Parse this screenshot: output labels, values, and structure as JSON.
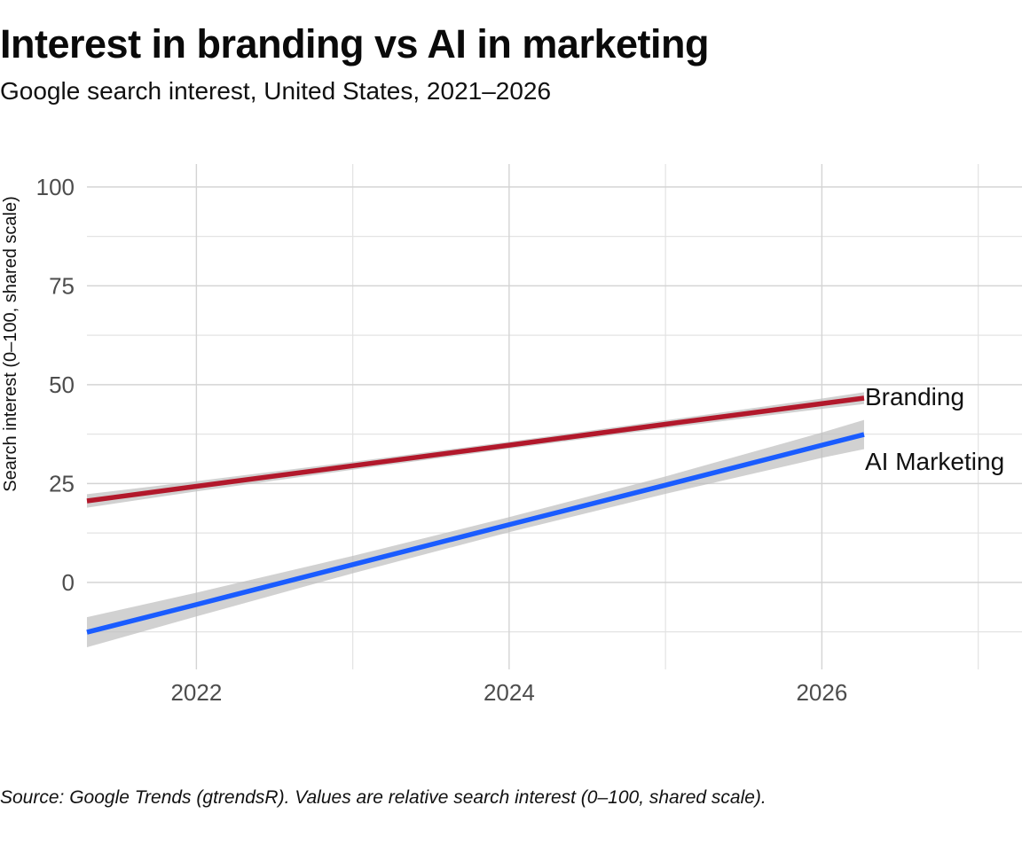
{
  "header": {
    "title": "Interest in branding vs AI in marketing",
    "subtitle": "Google search interest, United States, 2021–2026"
  },
  "caption": "Source: Google Trends (gtrendsR). Values are relative search interest (0–100, shared scale).",
  "chart_data": {
    "type": "line",
    "title": "Interest in branding vs AI in marketing",
    "subtitle": "Google search interest, United States, 2021–2026",
    "xlabel": "",
    "ylabel": "Search interest (0–100, shared scale)",
    "xlim": [
      2021.3,
      2027.28
    ],
    "ylim": [
      -22,
      105.8
    ],
    "x_ticks": [
      2022,
      2024,
      2026
    ],
    "x_tick_labels": [
      "2022",
      "2024",
      "2026"
    ],
    "x_minor_ticks": [
      2023,
      2025,
      2027
    ],
    "y_ticks": [
      0,
      25,
      50,
      75,
      100
    ],
    "y_tick_labels": [
      "0",
      "25",
      "50",
      "75",
      "100"
    ],
    "y_minor_ticks": [
      -12.5,
      12.5,
      37.5,
      62.5,
      87.5
    ],
    "grid": true,
    "legend": "direct-labels-right",
    "series": [
      {
        "name": "Branding",
        "label": "Branding",
        "color": "#B2182B",
        "fit": "linear trend with confidence band",
        "x": [
          2021.3,
          2022,
          2023,
          2024,
          2025,
          2026,
          2026.27
        ],
        "values": [
          20.6,
          24.3,
          29.5,
          34.7,
          40.0,
          45.2,
          46.6
        ],
        "band": [
          1.7,
          1.3,
          1.0,
          0.9,
          1.0,
          1.3,
          1.5
        ]
      },
      {
        "name": "AI Marketing",
        "label": "AI Marketing",
        "color": "#1A5CFF",
        "fit": "linear trend with confidence band",
        "x": [
          2021.3,
          2022,
          2023,
          2024,
          2025,
          2026,
          2026.27
        ],
        "values": [
          -12.6,
          -5.6,
          4.5,
          14.6,
          24.6,
          34.7,
          37.4
        ],
        "band": [
          3.8,
          3.0,
          2.2,
          1.9,
          2.2,
          3.2,
          3.7
        ]
      }
    ],
    "band_color": "#BEBEBE"
  }
}
